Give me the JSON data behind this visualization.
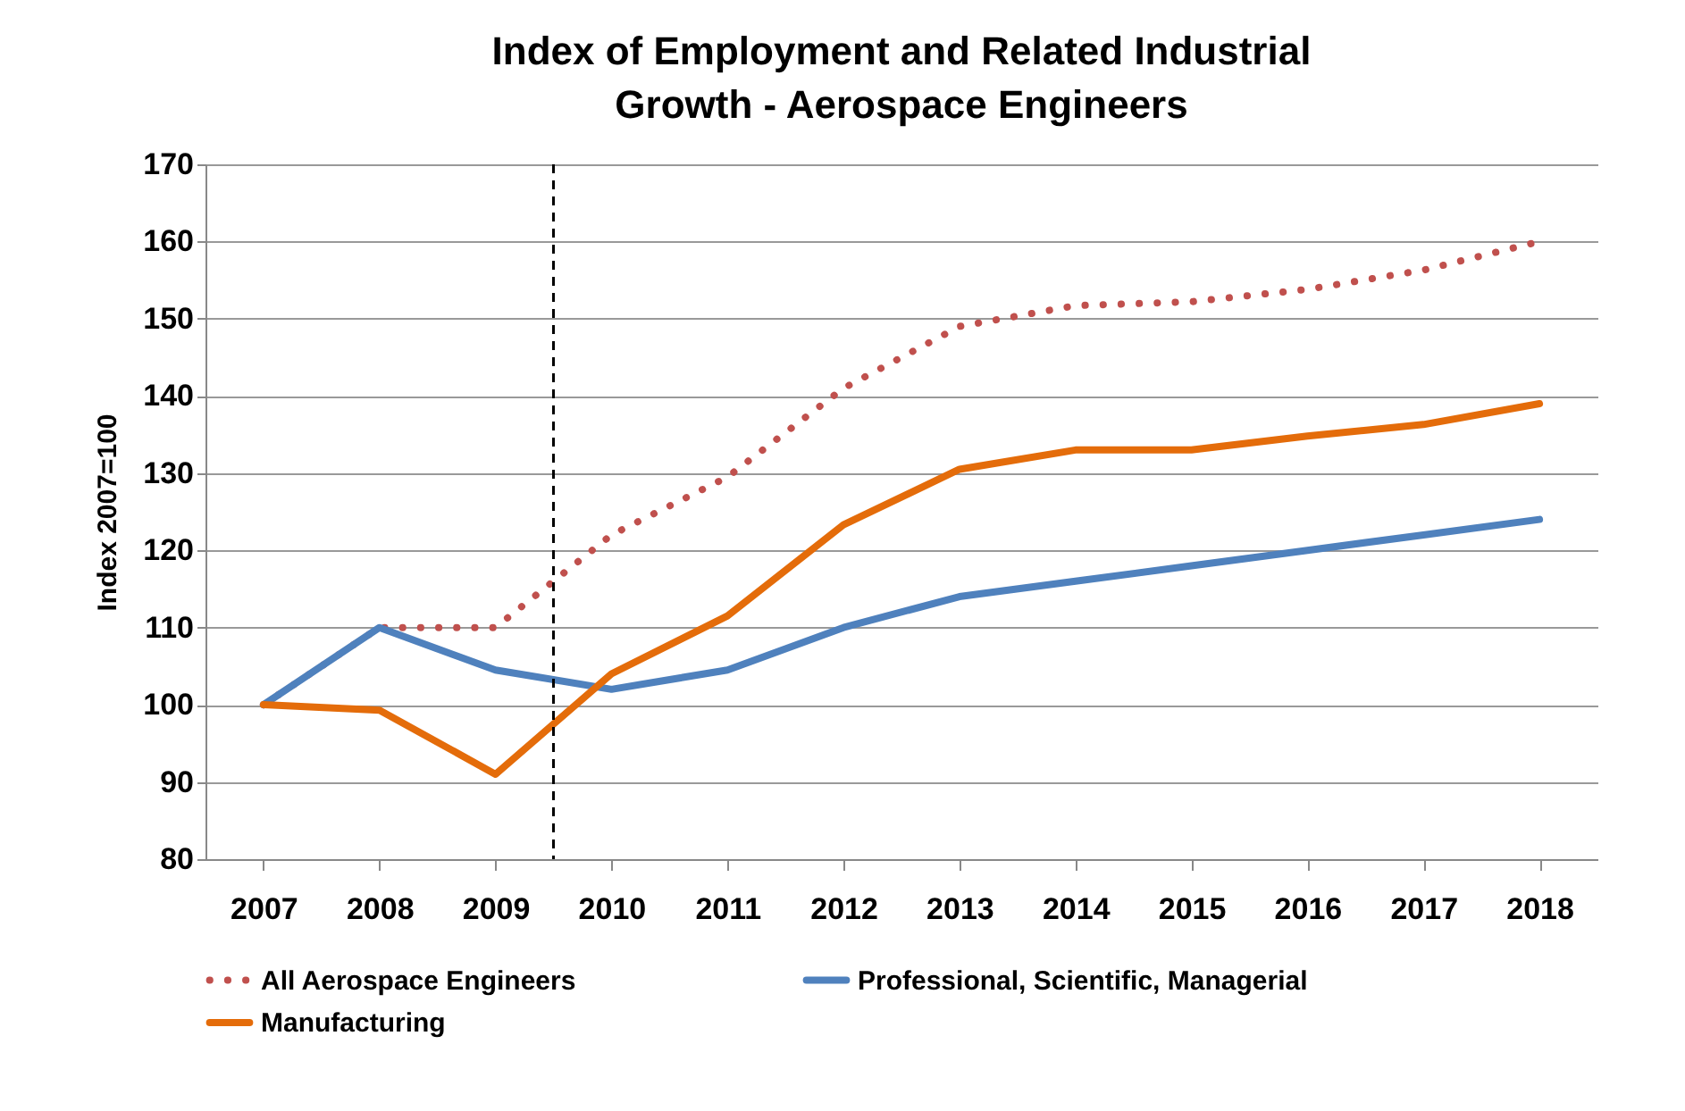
{
  "chart_data": {
    "type": "line",
    "title": "Index of Employment and Related Industrial Growth - Aerospace Engineers",
    "ylabel": "Index 2007=100",
    "x": [
      2007,
      2008,
      2009,
      2010,
      2011,
      2012,
      2013,
      2014,
      2015,
      2016,
      2017,
      2018
    ],
    "xlim": [
      2006.5,
      2018.5
    ],
    "xticks": [
      2007,
      2008,
      2009,
      2010,
      2011,
      2012,
      2013,
      2014,
      2015,
      2016,
      2017,
      2018
    ],
    "ylim": [
      80,
      170
    ],
    "yticks": [
      80,
      90,
      100,
      110,
      120,
      130,
      140,
      150,
      160,
      170
    ],
    "grid": "y",
    "legend": "bottom",
    "marker": "none",
    "series": [
      {
        "name": "All Aerospace Engineers",
        "color": "#c0504d",
        "line_style": "dotted",
        "values": [
          100,
          110,
          110,
          122,
          129.5,
          141,
          149,
          151.7,
          152.2,
          153.8,
          156.3,
          160
        ]
      },
      {
        "name": "Professional, Scientific, Managerial",
        "color": "#4f81bd",
        "line_style": "solid",
        "values": [
          100,
          110,
          104.5,
          102,
          104.5,
          110,
          114,
          116,
          118,
          120,
          122,
          124
        ]
      },
      {
        "name": "Manufacturing",
        "color": "#e46c0a",
        "line_style": "solid",
        "values": [
          100,
          99.3,
          91,
          104,
          111.5,
          123.3,
          130.5,
          133,
          133,
          134.8,
          136.3,
          139
        ]
      }
    ],
    "ref_lines": [
      {
        "axis": "x",
        "value": 2009.5,
        "color": "#000000",
        "line_style": "dashed"
      }
    ]
  }
}
